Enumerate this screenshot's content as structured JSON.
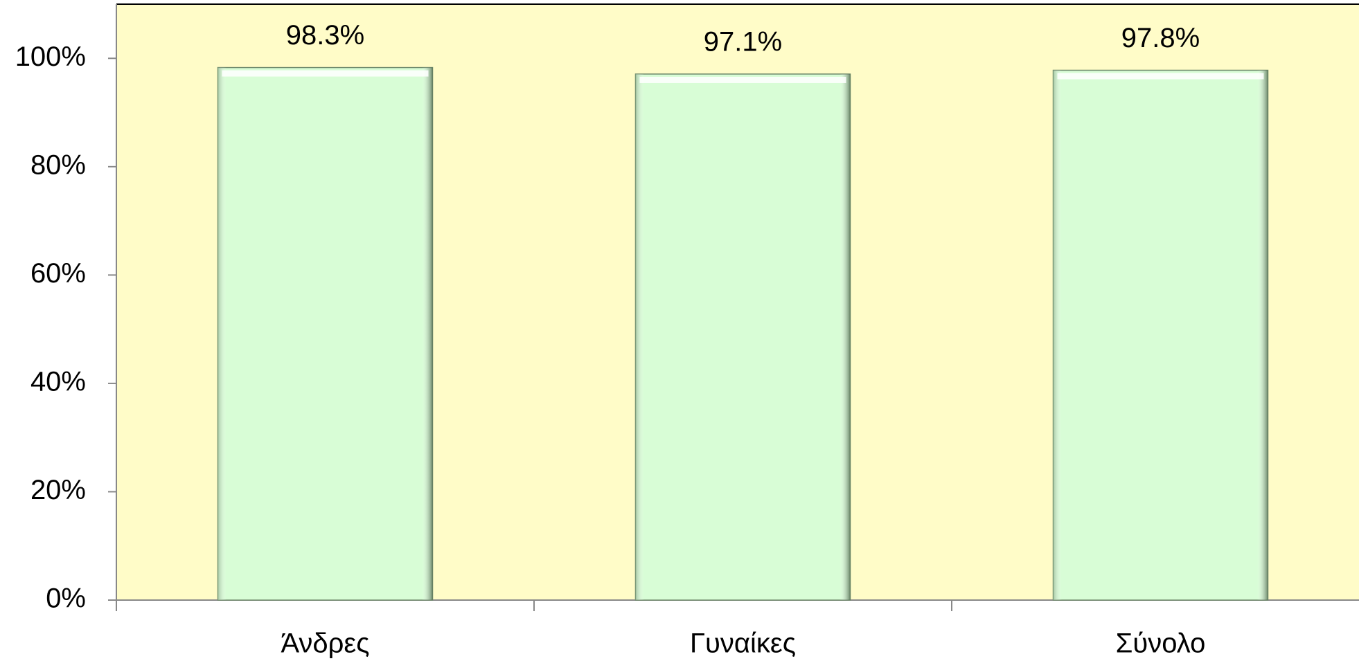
{
  "chart_data": {
    "type": "bar",
    "categories": [
      "Άνδρες",
      "Γυναίκες",
      "Σύνολο"
    ],
    "values": [
      98.3,
      97.1,
      97.8
    ],
    "value_labels": [
      "98.3%",
      "97.1%",
      "97.8%"
    ],
    "color": "#d8fdd6",
    "ylim": [
      0,
      110
    ],
    "yticks": [
      {
        "value": 0,
        "label": "0%"
      },
      {
        "value": 20,
        "label": "20%"
      },
      {
        "value": 40,
        "label": "40%"
      },
      {
        "value": 60,
        "label": "60%"
      },
      {
        "value": 80,
        "label": "80%"
      },
      {
        "value": 100,
        "label": "100%"
      }
    ]
  }
}
